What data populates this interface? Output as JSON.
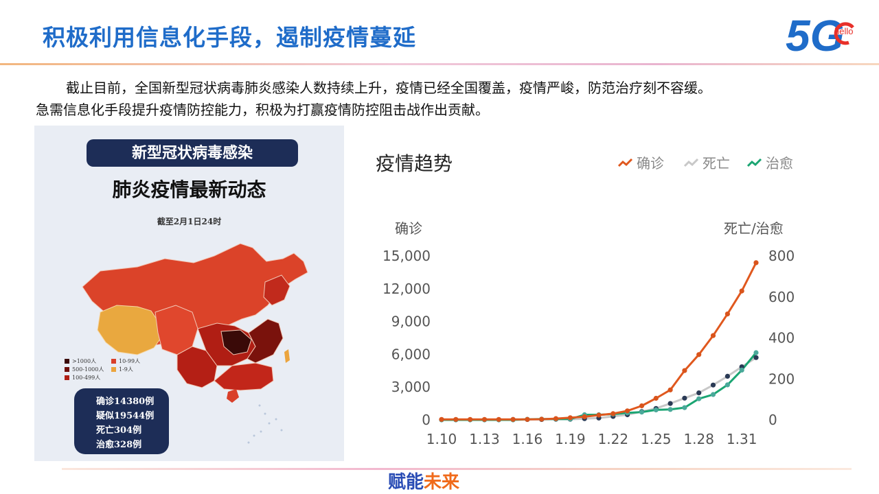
{
  "header": {
    "title": "积极利用信息化手段，遏制疫情蔓延",
    "logo_text": "5G",
    "logo_sub": "hello"
  },
  "body": {
    "line1": "截止目前，全国新型冠状病毒肺炎感染人数持续上升，疫情已经全国覆盖，疫情严峻，防范治疗刻不容缓。",
    "line2": "急需信息化手段提升疫情防控能力，积极为打赢疫情防控阻击战作出贡献。"
  },
  "poster": {
    "banner": "新型冠状病毒感染",
    "headline": "肺炎疫情最新动态",
    "date": "截至2月1日24时",
    "legend": [
      {
        "label": ">1000人",
        "color": "#3a0a08"
      },
      {
        "label": "10-99人",
        "color": "#d9402a"
      },
      {
        "label": "500-1000人",
        "color": "#6e0f0b"
      },
      {
        "label": "1-9人",
        "color": "#eba43d"
      },
      {
        "label": "100-499人",
        "color": "#b01e14"
      }
    ],
    "stats": [
      "确诊14380例",
      "疑似19544例",
      "死亡304例",
      "治愈328例"
    ]
  },
  "chart_data": {
    "type": "line",
    "title": "疫情趋势",
    "x": [
      "1.10",
      "1.11",
      "1.12",
      "1.13",
      "1.14",
      "1.15",
      "1.16",
      "1.17",
      "1.18",
      "1.19",
      "1.20",
      "1.21",
      "1.22",
      "1.23",
      "1.24",
      "1.25",
      "1.26",
      "1.27",
      "1.28",
      "1.29",
      "1.30",
      "1.31",
      "2.1"
    ],
    "x_tick_labels": [
      "1.10",
      "1.13",
      "1.16",
      "1.19",
      "1.22",
      "1.25",
      "1.28",
      "1.31"
    ],
    "y_left": {
      "label": "确诊",
      "ticks": [
        "15,000",
        "12,000",
        "9,000",
        "6,000",
        "3,000",
        "0"
      ],
      "range": [
        0,
        15000
      ]
    },
    "y_right": {
      "label": "死亡/治愈",
      "ticks": [
        "800",
        "600",
        "400",
        "200",
        "0"
      ],
      "range": [
        0,
        800
      ]
    },
    "series": [
      {
        "name": "确诊",
        "axis": "left",
        "color": "#e0581e",
        "values": [
          41,
          41,
          41,
          41,
          41,
          41,
          45,
          62,
          121,
          198,
          291,
          440,
          571,
          830,
          1287,
          1975,
          2744,
          4515,
          5974,
          7711,
          9692,
          11791,
          14380
        ]
      },
      {
        "name": "死亡",
        "axis": "right",
        "color": "#c8c8c8",
        "values": [
          1,
          1,
          1,
          1,
          1,
          2,
          2,
          2,
          3,
          3,
          6,
          9,
          17,
          25,
          41,
          56,
          80,
          106,
          132,
          170,
          213,
          259,
          304
        ]
      },
      {
        "name": "治愈",
        "axis": "right",
        "color": "#1aa572",
        "values": [
          0,
          0,
          0,
          0,
          0,
          0,
          3,
          4,
          4,
          4,
          25,
          25,
          28,
          34,
          38,
          49,
          51,
          60,
          103,
          124,
          171,
          243,
          328
        ]
      }
    ],
    "grid": false,
    "legend_position": "top-right"
  },
  "footer": {
    "part1": "赋能",
    "part2": "未来"
  }
}
